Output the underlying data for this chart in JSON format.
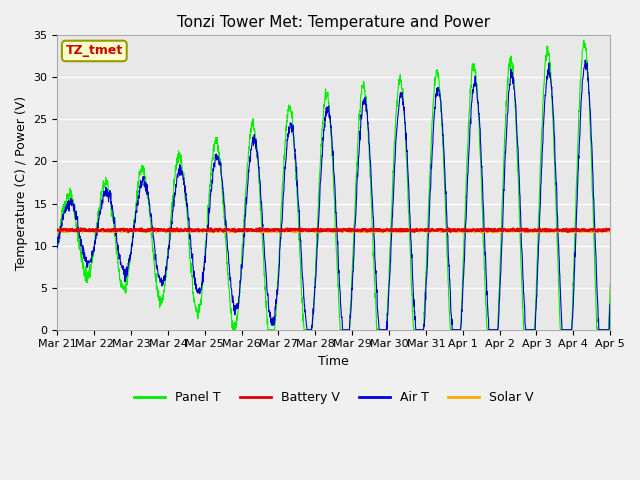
{
  "title": "Tonzi Tower Met: Temperature and Power",
  "xlabel": "Time",
  "ylabel": "Temperature (C) / Power (V)",
  "ylim": [
    0,
    35
  ],
  "x_tick_labels": [
    "Mar 21",
    "Mar 22",
    "Mar 23",
    "Mar 24",
    "Mar 25",
    "Mar 26",
    "Mar 27",
    "Mar 28",
    "Mar 29",
    "Mar 30",
    "Mar 31",
    "Apr 1",
    "Apr 2",
    "Apr 3",
    "Apr 4",
    "Apr 5"
  ],
  "legend_labels": [
    "Panel T",
    "Battery V",
    "Air T",
    "Solar V"
  ],
  "legend_colors": [
    "#00ee00",
    "#dd0000",
    "#0000dd",
    "#ffaa00"
  ],
  "annotation_text": "TZ_tmet",
  "annotation_color": "#cc0000",
  "annotation_bg": "#ffffcc",
  "plot_bg_color": "#e8e8e8",
  "panel_t_color": "#00ee00",
  "battery_v_color": "#dd0000",
  "air_t_color": "#0000cc",
  "solar_v_color": "#ffaa00",
  "n_points": 2000,
  "title_fontsize": 11,
  "label_fontsize": 9,
  "tick_fontsize": 8
}
